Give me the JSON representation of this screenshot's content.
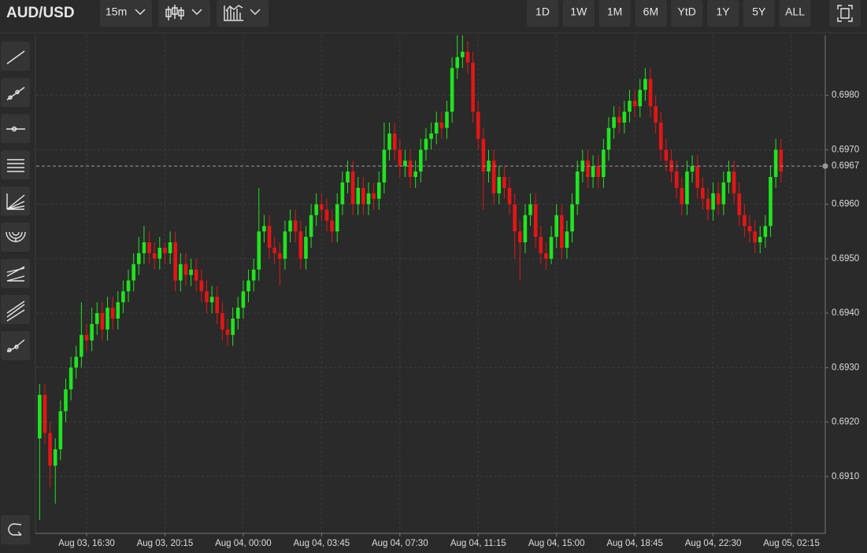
{
  "header": {
    "symbol": "AUD/USD",
    "interval": "15m",
    "ranges": [
      "1D",
      "1W",
      "1M",
      "6M",
      "YtD",
      "1Y",
      "5Y",
      "ALL"
    ]
  },
  "chart_data": {
    "type": "candlestick",
    "categories": [
      null,
      null,
      null,
      null,
      null,
      null,
      null,
      null,
      null,
      "Aug 03, 16:30",
      null,
      null,
      null,
      null,
      null,
      null,
      null,
      null,
      null,
      null,
      null,
      null,
      null,
      null,
      "Aug 03, 20:15",
      null,
      null,
      null,
      null,
      null,
      null,
      null,
      null,
      null,
      null,
      null,
      null,
      null,
      null,
      "Aug 04, 00:00",
      null,
      null,
      null,
      null,
      null,
      null,
      null,
      null,
      null,
      null,
      null,
      null,
      null,
      null,
      "Aug 04, 03:45",
      null,
      null,
      null,
      null,
      null,
      null,
      null,
      null,
      null,
      null,
      null,
      null,
      null,
      null,
      "Aug 04, 07:30",
      null,
      null,
      null,
      null,
      null,
      null,
      null,
      null,
      null,
      null,
      null,
      null,
      null,
      null,
      "Aug 04, 11:15",
      null,
      null,
      null,
      null,
      null,
      null,
      null,
      null,
      null,
      null,
      null,
      null,
      null,
      null,
      "Aug 04, 15:00",
      null,
      null,
      null,
      null,
      null,
      null,
      null,
      null,
      null,
      null,
      null,
      null,
      null,
      null,
      "Aug 04, 18:45",
      null,
      null,
      null,
      null,
      null,
      null,
      null,
      null,
      null,
      null,
      null,
      null,
      null,
      null,
      "Aug 04, 22:30",
      null,
      null,
      null,
      null,
      null,
      null,
      null,
      null,
      null,
      null,
      null,
      null,
      null,
      null,
      "Aug 05, 02:15"
    ],
    "open": [
      0.6917,
      0.6925,
      0.6918,
      0.6912,
      0.6915,
      0.6922,
      0.6926,
      0.693,
      0.6932,
      0.6936,
      0.6935,
      0.6938,
      0.694,
      0.6937,
      0.6941,
      0.6939,
      0.6942,
      0.6944,
      0.6946,
      0.6949,
      0.6951,
      0.6953,
      0.6951,
      0.695,
      0.6952,
      0.6951,
      0.6953,
      0.6946,
      0.6949,
      0.6947,
      0.6948,
      0.6946,
      0.6944,
      0.6942,
      0.6943,
      0.694,
      0.6937,
      0.6936,
      0.6939,
      0.6941,
      0.6944,
      0.6946,
      0.6948,
      0.6955,
      0.6956,
      0.6952,
      0.6951,
      0.695,
      0.6955,
      0.6957,
      0.6955,
      0.695,
      0.6954,
      0.6958,
      0.696,
      0.6959,
      0.6957,
      0.6955,
      0.696,
      0.6964,
      0.6966,
      0.696,
      0.6963,
      0.696,
      0.6962,
      0.6961,
      0.6964,
      0.697,
      0.6973,
      0.697,
      0.6967,
      0.6968,
      0.6965,
      0.6966,
      0.697,
      0.6972,
      0.6973,
      0.6975,
      0.6974,
      0.6977,
      0.6985,
      0.6987,
      0.6988,
      0.6986,
      0.6977,
      0.6972,
      0.6966,
      0.6968,
      0.6962,
      0.6965,
      0.6963,
      0.696,
      0.6955,
      0.6953,
      0.6958,
      0.696,
      0.6954,
      0.6951,
      0.695,
      0.6954,
      0.6958,
      0.6952,
      0.6955,
      0.696,
      0.6966,
      0.6968,
      0.6965,
      0.6967,
      0.6965,
      0.697,
      0.6974,
      0.6976,
      0.6975,
      0.6977,
      0.6979,
      0.6978,
      0.6981,
      0.6983,
      0.6978,
      0.6975,
      0.697,
      0.6968,
      0.6966,
      0.6963,
      0.696,
      0.6966,
      0.6967,
      0.6963,
      0.6961,
      0.6959,
      0.6962,
      0.696,
      0.6964,
      0.6966,
      0.6962,
      0.6958,
      0.6956,
      0.6955,
      0.6953,
      0.6954,
      0.6956,
      0.6965,
      0.697,
      null,
      null
    ],
    "high": [
      0.6927,
      0.6927,
      0.692,
      0.6917,
      0.6924,
      0.6928,
      0.6932,
      0.6934,
      0.6942,
      0.6938,
      0.6941,
      0.6942,
      0.6942,
      0.6943,
      0.6943,
      0.6944,
      0.6946,
      0.6948,
      0.6951,
      0.6954,
      0.6956,
      0.6955,
      0.6953,
      0.6954,
      0.6953,
      0.6955,
      0.6955,
      0.6951,
      0.6951,
      0.695,
      0.695,
      0.6948,
      0.6946,
      0.6945,
      0.6945,
      0.6942,
      0.6939,
      0.6941,
      0.6943,
      0.6946,
      0.6948,
      0.695,
      0.6963,
      0.6958,
      0.6958,
      0.6954,
      0.6953,
      0.6957,
      0.6959,
      0.6959,
      0.6957,
      0.6956,
      0.696,
      0.6962,
      0.6962,
      0.6961,
      0.6959,
      0.6962,
      0.6966,
      0.6968,
      0.6968,
      0.6965,
      0.6965,
      0.6964,
      0.6964,
      0.6966,
      0.6975,
      0.6975,
      0.6975,
      0.6972,
      0.697,
      0.697,
      0.6968,
      0.6972,
      0.6974,
      0.6975,
      0.6977,
      0.6977,
      0.6979,
      0.6987,
      0.6991,
      0.6991,
      0.699,
      0.6988,
      0.6979,
      0.6974,
      0.697,
      0.697,
      0.6967,
      0.6967,
      0.6965,
      0.6962,
      0.6957,
      0.696,
      0.6962,
      0.6962,
      0.6956,
      0.6953,
      0.6956,
      0.696,
      0.696,
      0.6957,
      0.6962,
      0.6968,
      0.697,
      0.697,
      0.6969,
      0.6969,
      0.6972,
      0.6976,
      0.6978,
      0.6978,
      0.6979,
      0.6981,
      0.6981,
      0.6983,
      0.6985,
      0.6985,
      0.698,
      0.6977,
      0.6972,
      0.697,
      0.6968,
      0.6965,
      0.6968,
      0.6969,
      0.6969,
      0.6965,
      0.6963,
      0.6964,
      0.6964,
      0.6966,
      0.6968,
      0.6968,
      0.6964,
      0.696,
      0.6958,
      0.6957,
      0.6956,
      0.6958,
      0.6967,
      0.6972,
      0.6972,
      null,
      null
    ],
    "low": [
      0.6902,
      0.6916,
      0.6908,
      0.6905,
      0.6913,
      0.692,
      0.6924,
      0.6928,
      0.693,
      0.6933,
      0.6933,
      0.6936,
      0.6935,
      0.6935,
      0.6937,
      0.6937,
      0.694,
      0.6942,
      0.6944,
      0.6947,
      0.6949,
      0.6949,
      0.6948,
      0.6948,
      0.6949,
      0.6949,
      0.6944,
      0.6944,
      0.6945,
      0.6945,
      0.6944,
      0.6942,
      0.694,
      0.694,
      0.6938,
      0.6935,
      0.6934,
      0.6934,
      0.6937,
      0.6939,
      0.6942,
      0.6944,
      0.6946,
      0.6953,
      0.695,
      0.6949,
      0.6945,
      0.6948,
      0.6953,
      0.6953,
      0.6948,
      0.6948,
      0.6952,
      0.6956,
      0.6957,
      0.6955,
      0.6953,
      0.6953,
      0.6958,
      0.6962,
      0.6958,
      0.6958,
      0.6958,
      0.6958,
      0.6959,
      0.6959,
      0.6962,
      0.6968,
      0.6968,
      0.6965,
      0.6965,
      0.6963,
      0.6963,
      0.6964,
      0.6968,
      0.697,
      0.6971,
      0.6972,
      0.6972,
      0.6975,
      0.6983,
      0.6985,
      0.6984,
      0.6975,
      0.697,
      0.6959,
      0.6964,
      0.696,
      0.696,
      0.6961,
      0.6958,
      0.695,
      0.6946,
      0.6951,
      0.6956,
      0.6952,
      0.6949,
      0.6948,
      0.6949,
      0.6952,
      0.695,
      0.695,
      0.6953,
      0.6958,
      0.6964,
      0.6963,
      0.6963,
      0.6963,
      0.6963,
      0.6968,
      0.6972,
      0.6973,
      0.6973,
      0.6975,
      0.6976,
      0.6976,
      0.6979,
      0.6976,
      0.6973,
      0.6968,
      0.6966,
      0.6964,
      0.6961,
      0.6958,
      0.6958,
      0.6964,
      0.6961,
      0.6959,
      0.6957,
      0.6957,
      0.6958,
      0.6958,
      0.6962,
      0.696,
      0.6956,
      0.6954,
      0.6953,
      0.6951,
      0.6951,
      0.6952,
      0.6954,
      0.6963,
      0.6964,
      null,
      null
    ],
    "close": [
      0.6925,
      0.6918,
      0.6912,
      0.6915,
      0.6922,
      0.6926,
      0.693,
      0.6932,
      0.6936,
      0.6935,
      0.6938,
      0.694,
      0.6937,
      0.6941,
      0.6939,
      0.6942,
      0.6944,
      0.6946,
      0.6949,
      0.6951,
      0.6953,
      0.6951,
      0.695,
      0.6952,
      0.6951,
      0.6953,
      0.6946,
      0.6949,
      0.6947,
      0.6948,
      0.6946,
      0.6944,
      0.6942,
      0.6943,
      0.694,
      0.6937,
      0.6936,
      0.6939,
      0.6941,
      0.6944,
      0.6946,
      0.6948,
      0.6955,
      0.6956,
      0.6952,
      0.6951,
      0.695,
      0.6955,
      0.6957,
      0.6955,
      0.695,
      0.6954,
      0.6958,
      0.696,
      0.6959,
      0.6957,
      0.6955,
      0.696,
      0.6964,
      0.6966,
      0.696,
      0.6963,
      0.696,
      0.6962,
      0.6961,
      0.6964,
      0.697,
      0.6973,
      0.697,
      0.6967,
      0.6968,
      0.6965,
      0.6966,
      0.697,
      0.6972,
      0.6973,
      0.6975,
      0.6974,
      0.6977,
      0.6985,
      0.6987,
      0.6988,
      0.6986,
      0.6977,
      0.6972,
      0.6966,
      0.6968,
      0.6962,
      0.6965,
      0.6963,
      0.696,
      0.6955,
      0.6953,
      0.6958,
      0.696,
      0.6954,
      0.6951,
      0.695,
      0.6954,
      0.6958,
      0.6952,
      0.6955,
      0.696,
      0.6966,
      0.6968,
      0.6965,
      0.6967,
      0.6965,
      0.697,
      0.6974,
      0.6976,
      0.6975,
      0.6977,
      0.6979,
      0.6978,
      0.6981,
      0.6983,
      0.6978,
      0.6975,
      0.697,
      0.6968,
      0.6966,
      0.6963,
      0.696,
      0.6966,
      0.6967,
      0.6963,
      0.6961,
      0.6959,
      0.6962,
      0.696,
      0.6964,
      0.6966,
      0.6962,
      0.6958,
      0.6956,
      0.6955,
      0.6953,
      0.6954,
      0.6956,
      0.6965,
      0.697,
      0.6966,
      null,
      null
    ],
    "up_color": "#1fe51f",
    "down_color": "#e51515",
    "ylim": [
      0.69,
      0.6991
    ],
    "yticks": [
      {
        "value": 0.691,
        "label": "0.6910"
      },
      {
        "value": 0.692,
        "label": "0.6920"
      },
      {
        "value": 0.693,
        "label": "0.6930"
      },
      {
        "value": 0.694,
        "label": "0.6940"
      },
      {
        "value": 0.695,
        "label": "0.6950"
      },
      {
        "value": 0.696,
        "label": "0.6960"
      },
      {
        "value": 0.697,
        "label": "0.6970"
      },
      {
        "value": 0.698,
        "label": "0.6980"
      }
    ],
    "last_price": 0.6967,
    "grid": true
  }
}
